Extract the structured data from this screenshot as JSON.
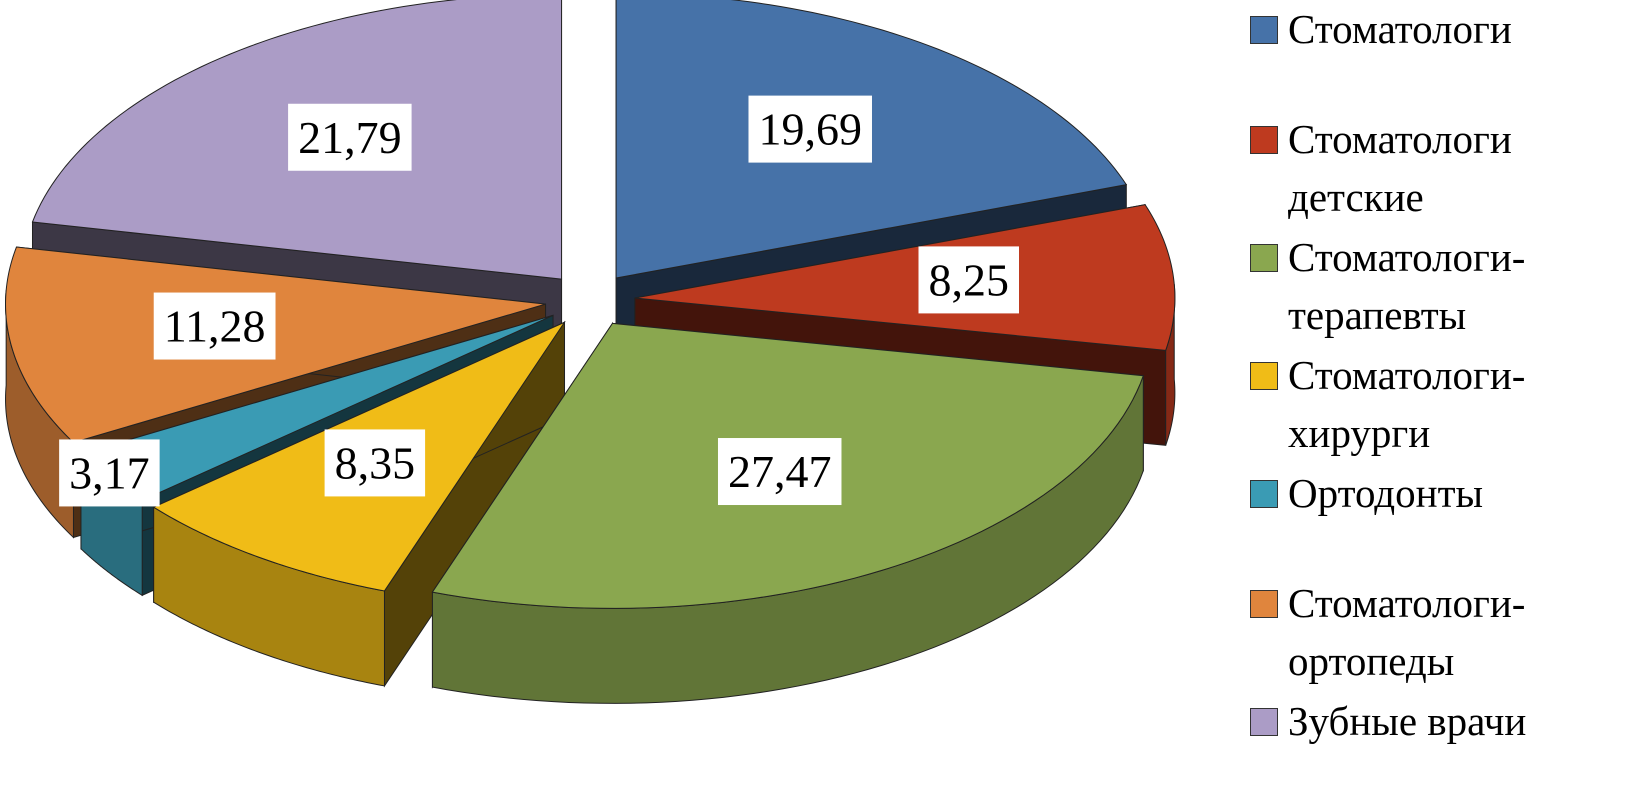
{
  "chart_data": {
    "type": "pie",
    "categories": [
      "Стоматологи",
      "Стоматологи детские",
      "Стоматологи-терапевты",
      "Стоматологи-хирурги",
      "Ортодонты",
      "Стоматологи-ортопеды",
      "Зубные врачи"
    ],
    "values": [
      19.69,
      8.25,
      27.47,
      8.35,
      3.17,
      11.28,
      21.79
    ],
    "value_labels": [
      "19,69",
      "8,25",
      "27,47",
      "8,35",
      "3,17",
      "11,28",
      "21,79"
    ],
    "colors": [
      "#4672a8",
      "#be3a1f",
      "#8aa74f",
      "#f0bc17",
      "#3a9bb4",
      "#e0853d",
      "#ab9cc6"
    ],
    "legend": "right"
  }
}
